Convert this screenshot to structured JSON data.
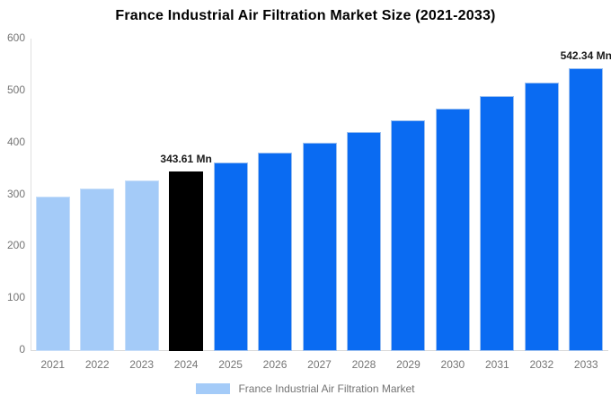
{
  "title": "France Industrial Air Filtration Market Size (2021-2033)",
  "legend": {
    "label": "France Industrial Air Filtration Market",
    "swatch_color": "#a4cbf8"
  },
  "colors": {
    "background": "#ffffff",
    "title_text": "#000000",
    "tick_text": "#757575",
    "legend_text": "#737373",
    "data_label_text": "#1a1a1a",
    "y_axis_line": "#e0e0e0",
    "x_axis_line": "#d9d9d9",
    "past_bar": "#a4cbf8",
    "current_bar": "#000000",
    "forecast_bar": "#0a6bf2"
  },
  "chart_data": {
    "type": "bar",
    "title": "France Industrial Air Filtration Market Size (2021-2033)",
    "unit": "Mn",
    "xlabel": "",
    "ylabel": "",
    "categories": [
      "2021",
      "2022",
      "2023",
      "2024",
      "2025",
      "2026",
      "2027",
      "2028",
      "2029",
      "2030",
      "2031",
      "2032",
      "2033"
    ],
    "values": [
      295.1,
      310.5,
      326.6,
      343.61,
      361.5,
      380.3,
      400.1,
      420.9,
      442.8,
      465.8,
      490.0,
      515.5,
      542.34
    ],
    "bar_colors": [
      "#a4cbf8",
      "#a4cbf8",
      "#a4cbf8",
      "#000000",
      "#0a6bf2",
      "#0a6bf2",
      "#0a6bf2",
      "#0a6bf2",
      "#0a6bf2",
      "#0a6bf2",
      "#0a6bf2",
      "#0a6bf2",
      "#0a6bf2"
    ],
    "bar_border_colors": [
      "#c7def9",
      "#c7def9",
      "#c7def9",
      "#000000",
      "#9cc0f0",
      "#9cc0f0",
      "#9cc0f0",
      "#9cc0f0",
      "#9cc0f0",
      "#9cc0f0",
      "#9cc0f0",
      "#9cc0f0",
      "#9cc0f0"
    ],
    "annotations": [
      {
        "category": "2024",
        "text": "343.61 Mn"
      },
      {
        "category": "2033",
        "text": "542.34 Mn"
      }
    ],
    "ylim": [
      0,
      600
    ],
    "yticks": [
      0,
      100,
      200,
      300,
      400,
      500,
      600
    ],
    "grid": false,
    "legend_position": "bottom",
    "legend_entries": [
      "France Industrial Air Filtration Market"
    ]
  }
}
